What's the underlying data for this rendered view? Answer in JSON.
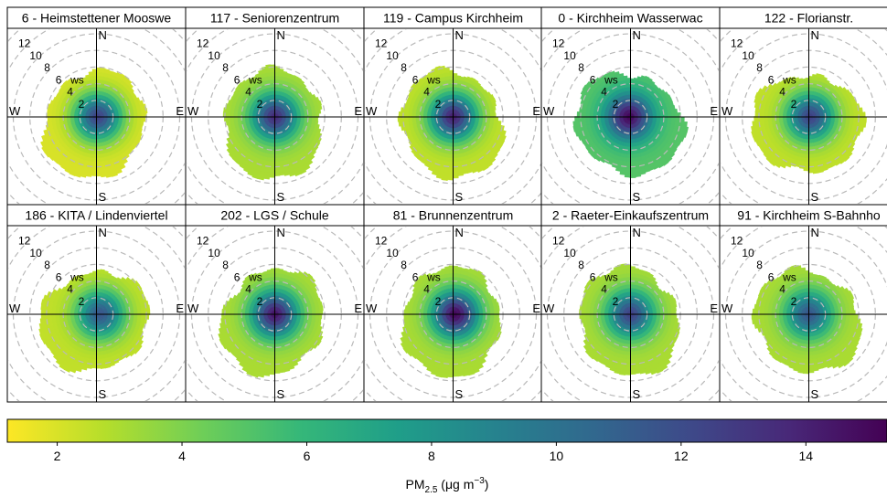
{
  "chart_data": {
    "type": "polar-plot-grid",
    "panels": [
      {
        "title": "6 - Heimstettener Mooswe",
        "peak": 12.5,
        "edge": 2.0,
        "cx": 0.2,
        "cy": 0.0
      },
      {
        "title": "117 - Seniorenzentrum",
        "peak": 13.5,
        "edge": 3.0,
        "cx": 0.0,
        "cy": 0.0
      },
      {
        "title": "119 - Campus Kirchheim",
        "peak": 14.0,
        "edge": 2.5,
        "cx": 0.0,
        "cy": 0.0
      },
      {
        "title": "0 - Kirchheim Wasserwac",
        "peak": 15.0,
        "edge": 5.0,
        "cx": -0.2,
        "cy": 0.0
      },
      {
        "title": "122 - Florianstr.",
        "peak": 12.5,
        "edge": 2.5,
        "cx": 0.2,
        "cy": 0.0
      },
      {
        "title": "186 - KITA / Lindenviertel",
        "peak": 11.5,
        "edge": 2.5,
        "cx": 0.5,
        "cy": 0.0
      },
      {
        "title": "202 - LGS / Schule",
        "peak": 14.5,
        "edge": 3.0,
        "cx": 0.0,
        "cy": 0.0
      },
      {
        "title": "81 - Brunnenzentrum",
        "peak": 15.0,
        "edge": 3.0,
        "cx": 0.3,
        "cy": 0.0
      },
      {
        "title": "2 - Raeter-Einkaufszentrum",
        "peak": 12.5,
        "edge": 3.0,
        "cx": 0.0,
        "cy": 0.0
      },
      {
        "title": "91 - Kirchheim S-Bahnho",
        "peak": 11.5,
        "edge": 3.0,
        "cx": 0.0,
        "cy": 0.0
      }
    ],
    "radial_ticks": [
      2,
      4,
      6,
      8,
      10,
      12
    ],
    "radial_label": "ws",
    "compass": {
      "N": "N",
      "E": "E",
      "S": "S",
      "W": "W"
    },
    "colorbar": {
      "min": 1.2,
      "max": 15.3,
      "ticks": [
        2,
        4,
        6,
        8,
        10,
        12,
        14
      ],
      "label_main": "PM",
      "label_sub": "2.5",
      "label_unit": " (μg m",
      "label_exp": "−3",
      "label_close": ")",
      "palette": [
        "#fde725",
        "#b5de2b",
        "#6ece58",
        "#35b779",
        "#1f9e89",
        "#26828e",
        "#31688e",
        "#3e4989",
        "#482878",
        "#440154"
      ]
    }
  }
}
